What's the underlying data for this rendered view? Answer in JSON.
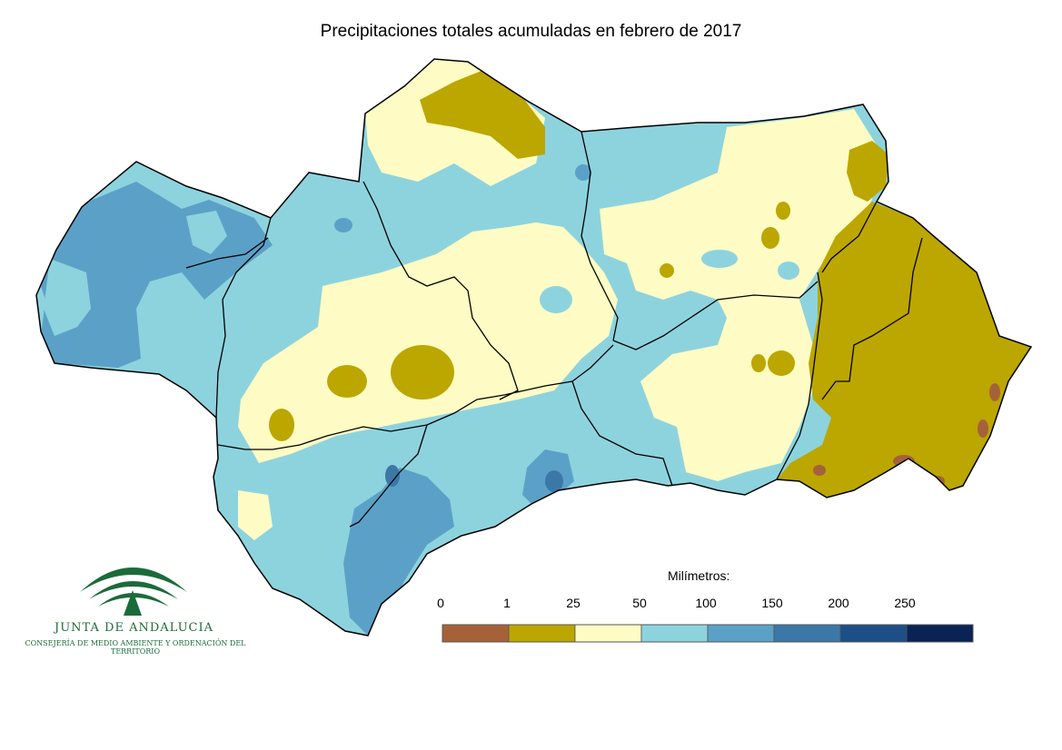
{
  "title": "Precipitaciones totales acumuladas en febrero de 2017",
  "legend": {
    "title": "Milímetros:",
    "ticks": [
      "0",
      "1",
      "25",
      "50",
      "100",
      "150",
      "200",
      "250"
    ],
    "colors": [
      "#a5623a",
      "#bca600",
      "#fefcc4",
      "#8dd3de",
      "#5ba1c7",
      "#3b78a7",
      "#1d4f87",
      "#0a2355"
    ]
  },
  "logo": {
    "name": "JUNTA DE ANDALUCIA",
    "subtitle": "CONSEJERÍA DE MEDIO AMBIENTE Y ORDENACIÓN DEL TERRITORIO",
    "color": "#1b6b3a"
  },
  "map_colors": {
    "dry": "#bca600",
    "low": "#fefcc4",
    "mid": "#8dd3de",
    "high": "#5ba1c7",
    "higher": "#3b78a7",
    "minimal": "#a5623a"
  }
}
